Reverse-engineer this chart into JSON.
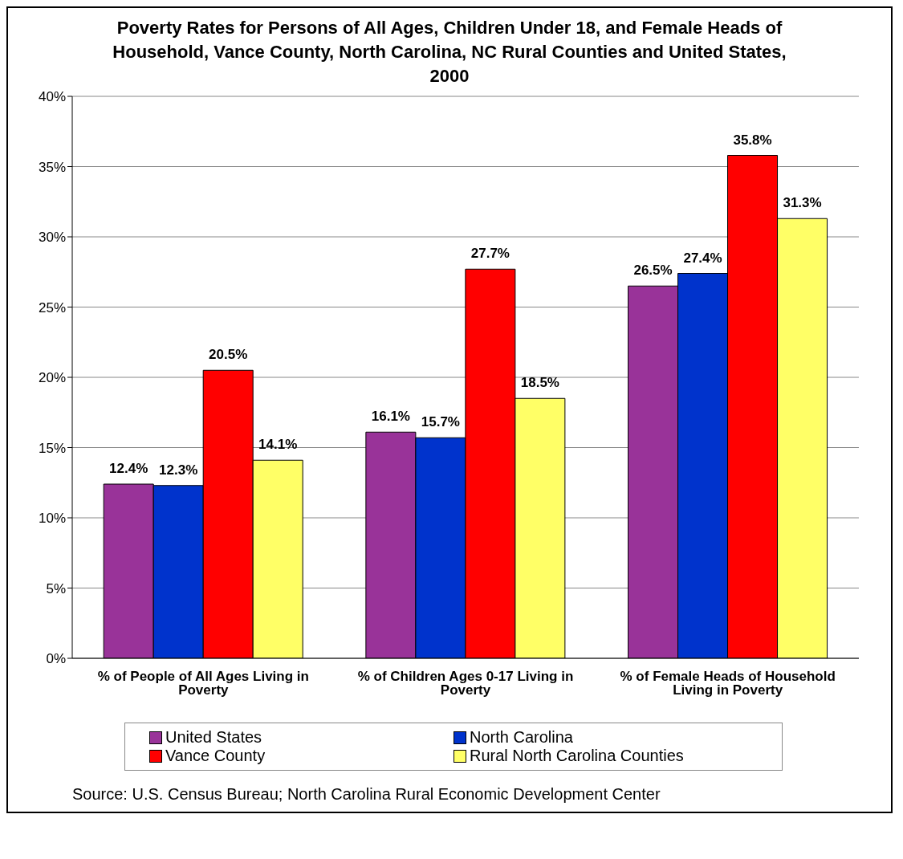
{
  "chart_data": {
    "type": "bar",
    "title": "Poverty Rates for Persons of All Ages, Children Under 18, and Female Heads of Household, Vance County, North Carolina, NC Rural Counties and United States, 2000",
    "categories": [
      "% of People of All Ages Living in Poverty",
      "% of Children Ages 0-17 Living in Poverty",
      "% of Female Heads of Household Living in Poverty"
    ],
    "series": [
      {
        "name": "United States",
        "color": "#993399",
        "values": [
          12.4,
          16.1,
          26.5
        ],
        "value_labels": [
          "12.4%",
          "16.1%",
          "26.5%"
        ]
      },
      {
        "name": "North Carolina",
        "color": "#0033cc",
        "values": [
          12.3,
          15.7,
          27.4
        ],
        "value_labels": [
          "12.3%",
          "15.7%",
          "27.4%"
        ]
      },
      {
        "name": "Vance County",
        "color": "#ff0000",
        "values": [
          20.5,
          27.7,
          35.8
        ],
        "value_labels": [
          "20.5%",
          "27.7%",
          "35.8%"
        ]
      },
      {
        "name": "Rural North Carolina Counties",
        "color": "#ffff66",
        "values": [
          14.1,
          18.5,
          31.3
        ],
        "value_labels": [
          "14.1%",
          "18.5%",
          "31.3%"
        ]
      }
    ],
    "ylim": [
      0,
      40
    ],
    "yticks": [
      {
        "value": 0,
        "label": "0%"
      },
      {
        "value": 5,
        "label": "5%"
      },
      {
        "value": 10,
        "label": "10%"
      },
      {
        "value": 15,
        "label": "15%"
      },
      {
        "value": 20,
        "label": "20%"
      },
      {
        "value": 25,
        "label": "25%"
      },
      {
        "value": 30,
        "label": "30%"
      },
      {
        "value": 35,
        "label": "35%"
      },
      {
        "value": 40,
        "label": "40%"
      }
    ],
    "grid": "y",
    "legend": "bottom",
    "annotations": [
      "Source: U.S. Census Bureau; North Carolina Rural Economic Development Center"
    ]
  }
}
